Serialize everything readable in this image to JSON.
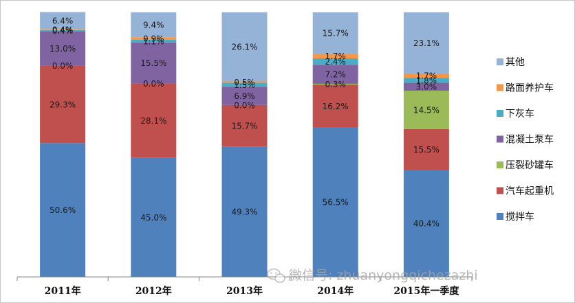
{
  "chart_data": {
    "type": "bar",
    "stacked": true,
    "percent_stacked": true,
    "categories": [
      "2011年",
      "2012年",
      "2013年",
      "2014年",
      "2015年一季度"
    ],
    "series": [
      {
        "name": "搅拌车",
        "color": "#4f81bd",
        "values": [
          50.6,
          45.0,
          49.3,
          56.5,
          40.4
        ]
      },
      {
        "name": "汽车起重机",
        "color": "#c0504d",
        "values": [
          29.3,
          28.1,
          15.7,
          16.2,
          15.5
        ]
      },
      {
        "name": "压裂砂罐车",
        "color": "#9bbb59",
        "values": [
          0.0,
          0.0,
          0.0,
          0.3,
          14.5
        ]
      },
      {
        "name": "混凝土泵车",
        "color": "#8064a2",
        "values": [
          13.0,
          15.5,
          6.9,
          7.2,
          3.0
        ]
      },
      {
        "name": "下灰车",
        "color": "#4bacc6",
        "values": [
          0.4,
          1.1,
          1.5,
          2.4,
          1.8
        ]
      },
      {
        "name": "路面养护车",
        "color": "#f79646",
        "values": [
          0.4,
          0.9,
          0.5,
          1.7,
          1.7
        ]
      },
      {
        "name": "其他",
        "color": "#95b3d7",
        "values": [
          6.4,
          9.4,
          26.1,
          15.7,
          23.1
        ]
      }
    ],
    "data_labels": [
      [
        {
          "series": 0,
          "text": "50.6%"
        },
        {
          "series": 1,
          "text": "29.3%"
        },
        {
          "series": 2,
          "text": "0.0%"
        },
        {
          "series": 3,
          "text": "13.0%"
        },
        {
          "series": 4,
          "text": "0.4%"
        },
        {
          "series": 5,
          "text": "0.4%"
        },
        {
          "series": 6,
          "text": "6.4%"
        }
      ],
      [
        {
          "series": 0,
          "text": "45.0%"
        },
        {
          "series": 1,
          "text": "28.1%"
        },
        {
          "series": 2,
          "text": "0.0%"
        },
        {
          "series": 3,
          "text": "15.5%"
        },
        {
          "series": 4,
          "text": "1.1%"
        },
        {
          "series": 5,
          "text": "0.9%"
        },
        {
          "series": 6,
          "text": "9.4%"
        }
      ],
      [
        {
          "series": 0,
          "text": "49.3%"
        },
        {
          "series": 1,
          "text": "15.7%"
        },
        {
          "series": 2,
          "text": "0.0%"
        },
        {
          "series": 3,
          "text": "6.9%"
        },
        {
          "series": 4,
          "text": "1.5%"
        },
        {
          "series": 5,
          "text": "0.5%"
        },
        {
          "series": 6,
          "text": "26.1%"
        }
      ],
      [
        {
          "series": 0,
          "text": "56.5%"
        },
        {
          "series": 1,
          "text": "16.2%"
        },
        {
          "series": 2,
          "text": "0.3%"
        },
        {
          "series": 3,
          "text": "7.2%"
        },
        {
          "series": 4,
          "text": "2.4%"
        },
        {
          "series": 5,
          "text": "1.7%"
        },
        {
          "series": 6,
          "text": "15.7%"
        }
      ],
      [
        {
          "series": 0,
          "text": "40.4%"
        },
        {
          "series": 1,
          "text": "15.5%"
        },
        {
          "series": 2,
          "text": "14.5%"
        },
        {
          "series": 3,
          "text": "3.0%"
        },
        {
          "series": 4,
          "text": "1.8%"
        },
        {
          "series": 5,
          "text": "1.7%"
        },
        {
          "series": 6,
          "text": "23.1%"
        }
      ]
    ],
    "legend_order": [
      "其他",
      "路面养护车",
      "下灰车",
      "混凝土泵车",
      "压裂砂罐车",
      "汽车起重机",
      "搅拌车"
    ],
    "legend_position": "right",
    "ylim": [
      0,
      100
    ],
    "grid": false,
    "title": "",
    "xlabel": "",
    "ylabel": ""
  },
  "watermark": {
    "text": "微信号: zhuanyongqichezazhi",
    "icon": "wechat-icon"
  }
}
